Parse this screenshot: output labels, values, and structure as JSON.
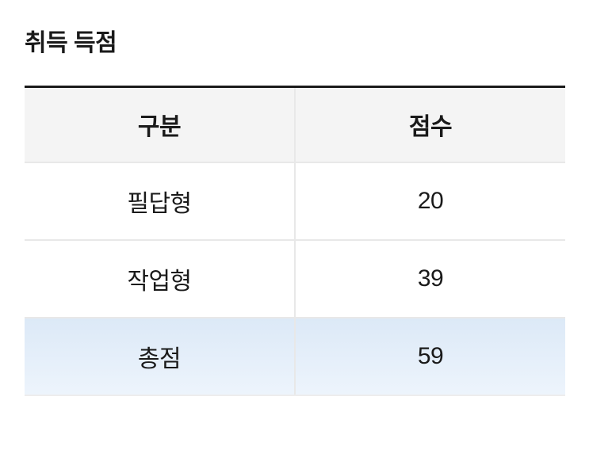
{
  "page": {
    "title": "취득 득점"
  },
  "table": {
    "columns": [
      "구분",
      "점수"
    ],
    "rows": [
      {
        "label": "필답형",
        "value": "20",
        "is_total": false
      },
      {
        "label": "작업형",
        "value": "39",
        "is_total": false
      },
      {
        "label": "총점",
        "value": "59",
        "is_total": true
      }
    ]
  },
  "colors": {
    "top_border": "#1a1a1a",
    "header_bg": "#f4f4f4",
    "divider": "#e8e8e8",
    "bottom_border": "#ededed",
    "total_row_bg_top": "#dce9f7",
    "total_row_bg_bottom": "#edf4fc",
    "text": "#1a1a1a",
    "page_bg": "#ffffff"
  }
}
